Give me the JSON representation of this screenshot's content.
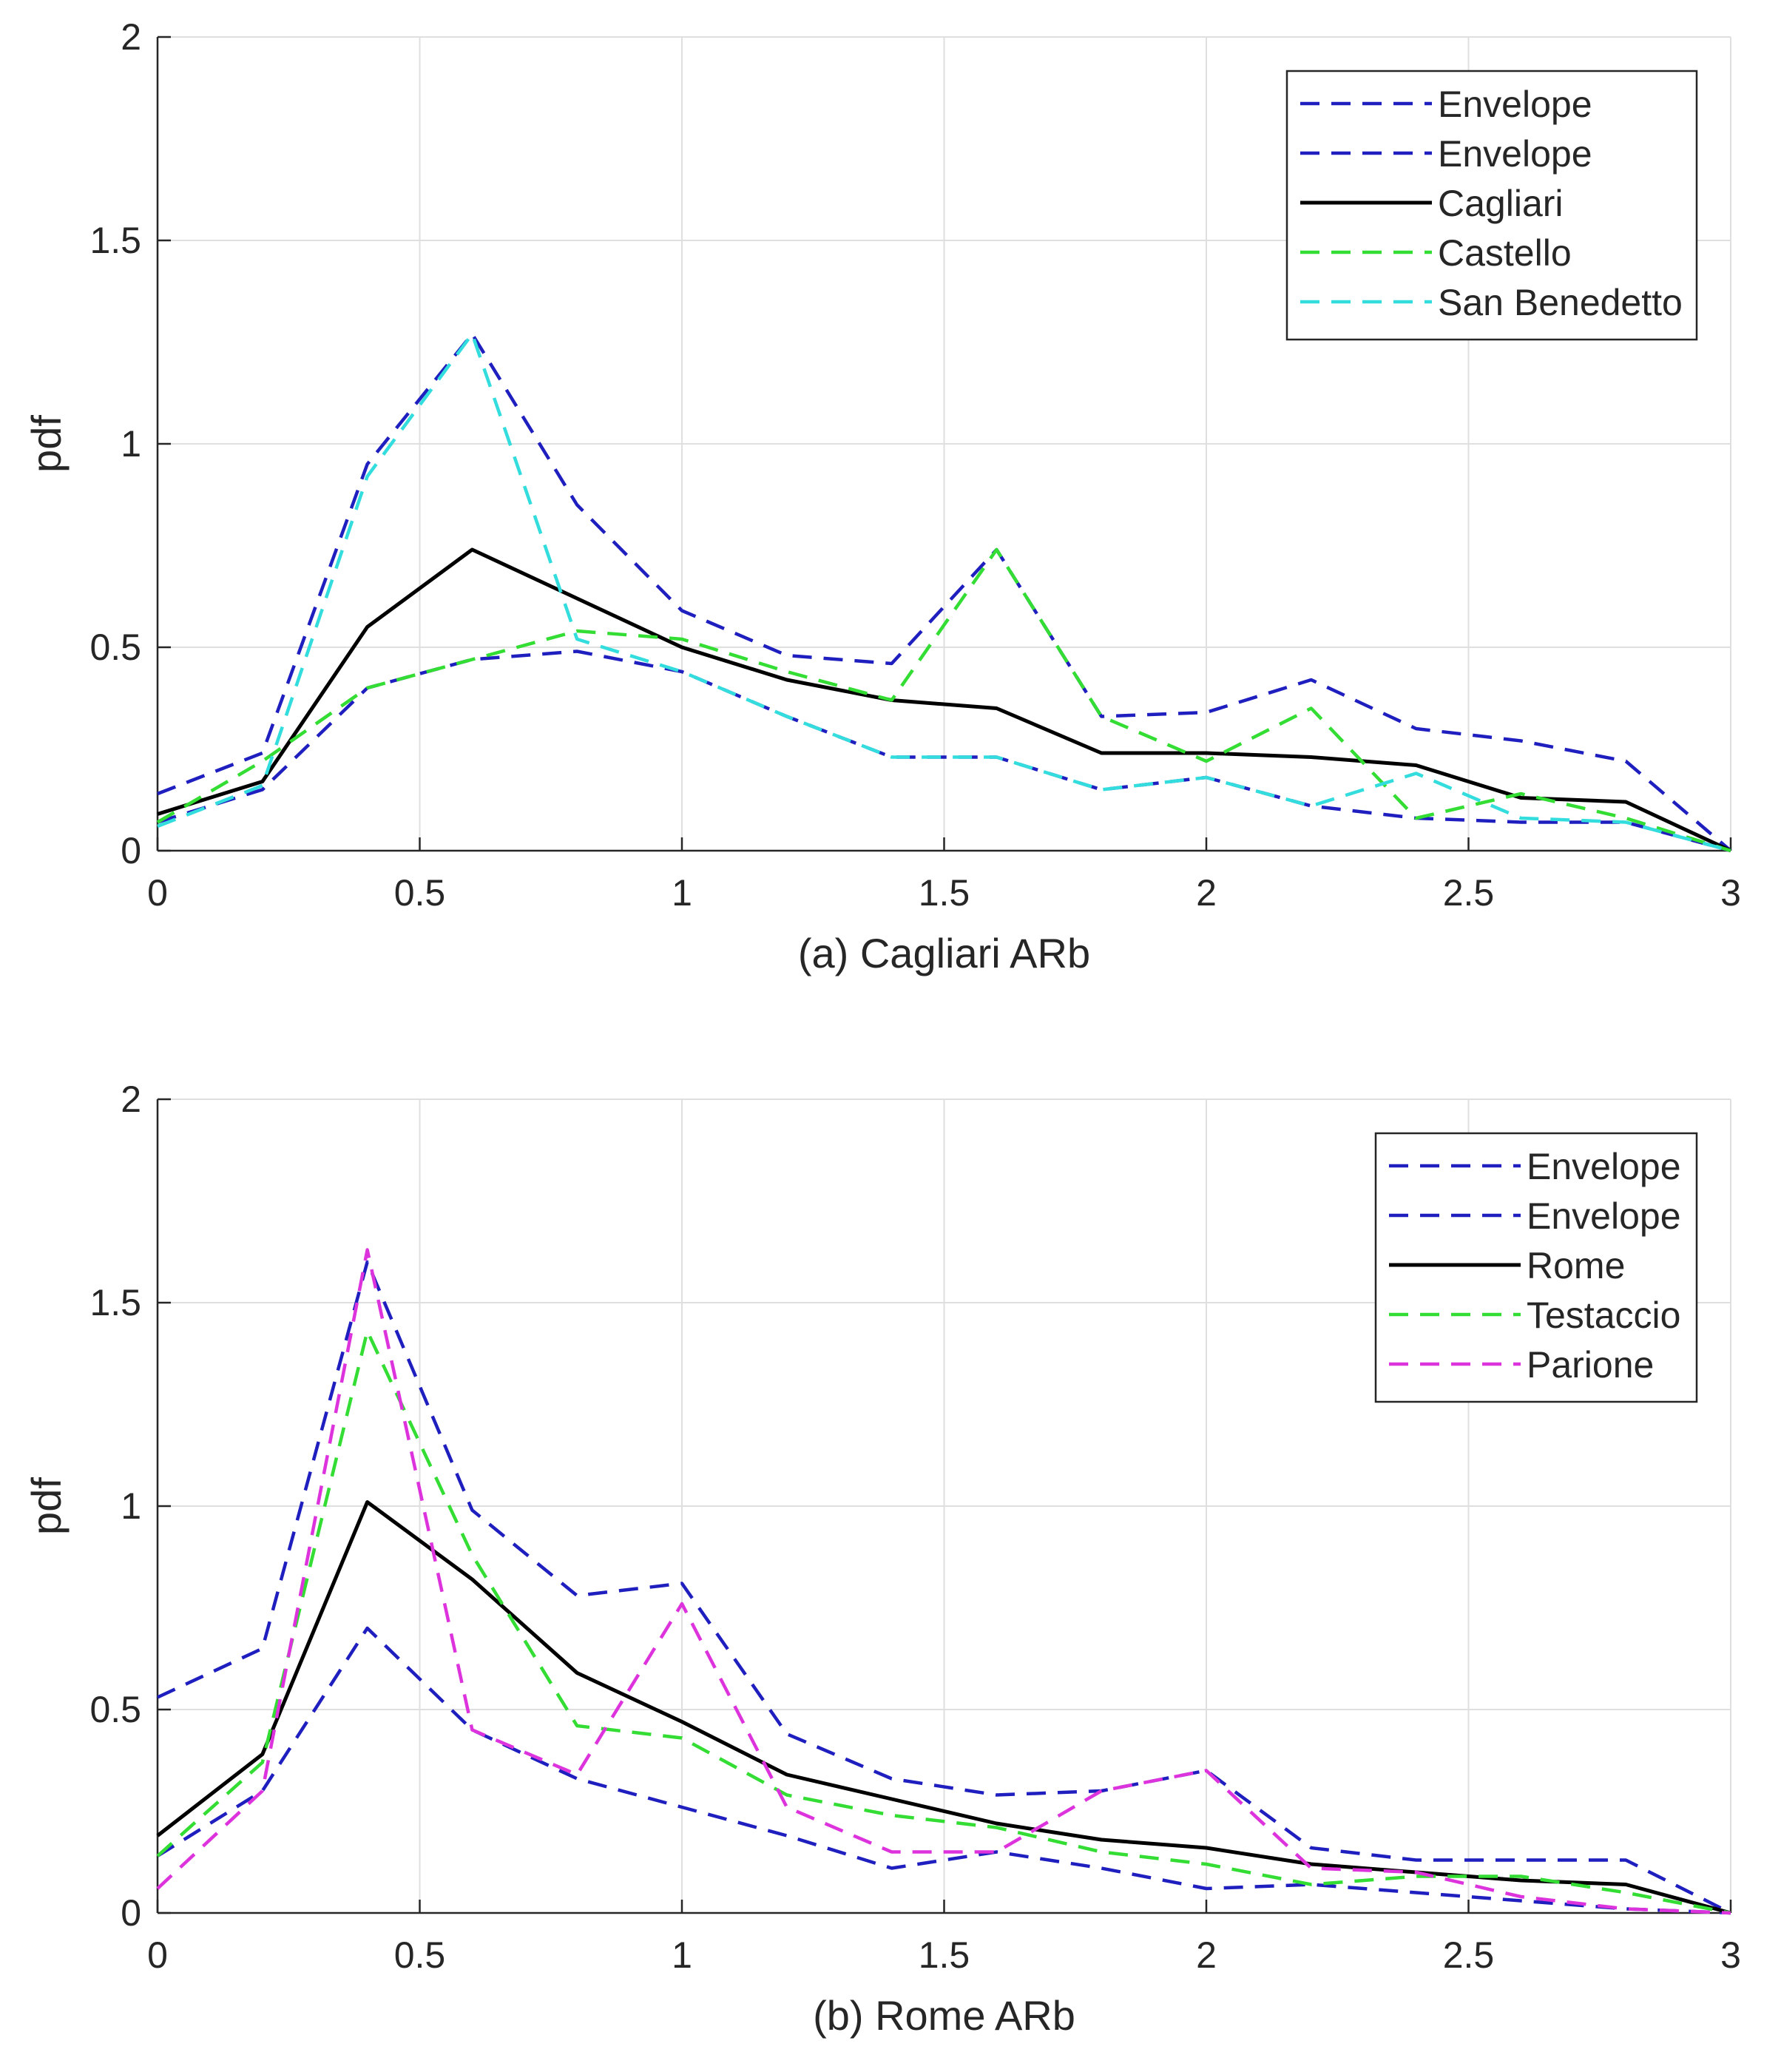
{
  "chart_data": [
    {
      "type": "line",
      "title": "",
      "xlabel": "(a) Cagliari ARb",
      "ylabel": "pdf",
      "xlim": [
        0,
        3
      ],
      "ylim": [
        0,
        2
      ],
      "xticks": [
        0,
        0.5,
        1,
        1.5,
        2,
        2.5,
        3
      ],
      "xtick_labels": [
        "0",
        "0.5",
        "1",
        "1.5",
        "2",
        "2.5",
        "3"
      ],
      "yticks": [
        0,
        0.5,
        1,
        1.5,
        2
      ],
      "ytick_labels": [
        "0",
        "0.5",
        "1",
        "1.5",
        "2"
      ],
      "grid": true,
      "legend_position": "top-right",
      "x": [
        0,
        0.2,
        0.4,
        0.6,
        0.8,
        1.0,
        1.2,
        1.4,
        1.6,
        1.8,
        2.0,
        2.2,
        2.4,
        2.6,
        2.8,
        3.0
      ],
      "series": [
        {
          "name": "Envelope",
          "color": "#1f1fbf",
          "style": "dashed",
          "values": [
            0.14,
            0.24,
            0.95,
            1.27,
            0.85,
            0.59,
            0.48,
            0.46,
            0.74,
            0.33,
            0.34,
            0.42,
            0.3,
            0.27,
            0.22,
            0.0
          ]
        },
        {
          "name": "Envelope",
          "color": "#1f1fbf",
          "style": "dashed",
          "values": [
            0.07,
            0.15,
            0.4,
            0.47,
            0.49,
            0.44,
            0.33,
            0.23,
            0.23,
            0.15,
            0.18,
            0.11,
            0.08,
            0.07,
            0.07,
            0.0
          ]
        },
        {
          "name": "Cagliari",
          "color": "#000000",
          "style": "solid",
          "values": [
            0.09,
            0.17,
            0.55,
            0.74,
            0.62,
            0.5,
            0.42,
            0.37,
            0.35,
            0.24,
            0.24,
            0.23,
            0.21,
            0.13,
            0.12,
            0.0
          ]
        },
        {
          "name": "Castello",
          "color": "#33dd33",
          "style": "dashed",
          "values": [
            0.07,
            0.22,
            0.4,
            0.47,
            0.54,
            0.52,
            0.44,
            0.37,
            0.74,
            0.33,
            0.22,
            0.35,
            0.08,
            0.14,
            0.08,
            0.0
          ]
        },
        {
          "name": "San Benedetto",
          "color": "#33dddd",
          "style": "dashed",
          "values": [
            0.06,
            0.16,
            0.92,
            1.27,
            0.52,
            0.44,
            0.33,
            0.23,
            0.23,
            0.15,
            0.18,
            0.11,
            0.19,
            0.08,
            0.07,
            0.0
          ]
        }
      ]
    },
    {
      "type": "line",
      "title": "",
      "xlabel": "(b) Rome ARb",
      "ylabel": "pdf",
      "xlim": [
        0,
        3
      ],
      "ylim": [
        0,
        2
      ],
      "xticks": [
        0,
        0.5,
        1,
        1.5,
        2,
        2.5,
        3
      ],
      "xtick_labels": [
        "0",
        "0.5",
        "1",
        "1.5",
        "2",
        "2.5",
        "3"
      ],
      "yticks": [
        0,
        0.5,
        1,
        1.5,
        2
      ],
      "ytick_labels": [
        "0",
        "0.5",
        "1",
        "1.5",
        "2"
      ],
      "grid": true,
      "legend_position": "top-right",
      "x": [
        0,
        0.2,
        0.4,
        0.6,
        0.8,
        1.0,
        1.2,
        1.4,
        1.6,
        1.8,
        2.0,
        2.2,
        2.4,
        2.6,
        2.8,
        3.0
      ],
      "series": [
        {
          "name": "Envelope",
          "color": "#1f1fbf",
          "style": "dashed",
          "values": [
            0.53,
            0.65,
            1.6,
            0.99,
            0.78,
            0.81,
            0.44,
            0.33,
            0.29,
            0.3,
            0.35,
            0.16,
            0.13,
            0.13,
            0.13,
            0.0
          ]
        },
        {
          "name": "Envelope",
          "color": "#1f1fbf",
          "style": "dashed",
          "values": [
            0.14,
            0.3,
            0.7,
            0.45,
            0.33,
            0.26,
            0.19,
            0.11,
            0.15,
            0.11,
            0.06,
            0.07,
            0.05,
            0.03,
            0.01,
            0.0
          ]
        },
        {
          "name": "Rome",
          "color": "#000000",
          "style": "solid",
          "values": [
            0.19,
            0.39,
            1.01,
            0.82,
            0.59,
            0.47,
            0.34,
            0.28,
            0.22,
            0.18,
            0.16,
            0.12,
            0.1,
            0.08,
            0.07,
            0.0
          ]
        },
        {
          "name": "Testaccio",
          "color": "#33dd33",
          "style": "dashed",
          "values": [
            0.14,
            0.37,
            1.43,
            0.88,
            0.46,
            0.43,
            0.29,
            0.24,
            0.21,
            0.15,
            0.12,
            0.07,
            0.09,
            0.09,
            0.05,
            0.0
          ]
        },
        {
          "name": "Parione",
          "color": "#dd33dd",
          "style": "dashed",
          "values": [
            0.06,
            0.3,
            1.63,
            0.45,
            0.34,
            0.76,
            0.26,
            0.15,
            0.15,
            0.3,
            0.35,
            0.11,
            0.1,
            0.04,
            0.01,
            0.0
          ]
        }
      ]
    }
  ]
}
